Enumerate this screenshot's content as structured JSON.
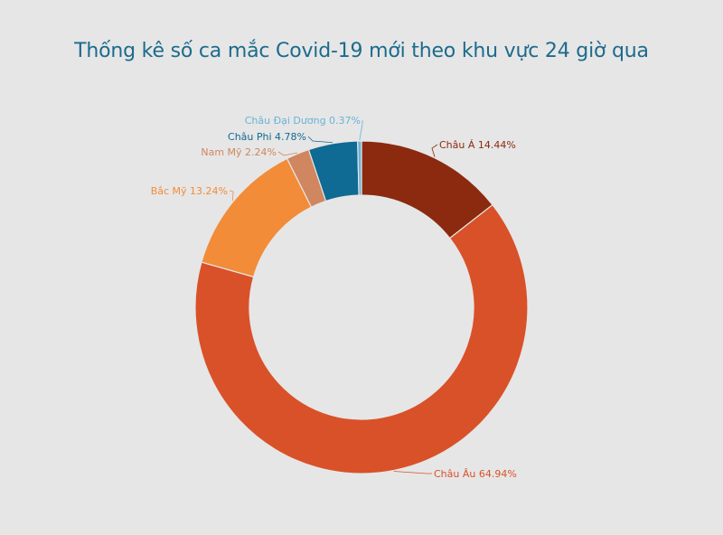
{
  "chart_data": {
    "type": "pie",
    "title": "Thống kê số ca mắc Covid-19 mới theo khu vực 24 giờ qua",
    "donut": true,
    "legend": "none",
    "series": [
      {
        "name": "Châu Á",
        "value": 14.44,
        "label": "Châu Á 14.44%",
        "color": "#8b2a0e"
      },
      {
        "name": "Châu Âu",
        "value": 64.94,
        "label": "Châu Âu 64.94%",
        "color": "#d95128"
      },
      {
        "name": "Bắc Mỹ",
        "value": 13.24,
        "label": "Bắc Mỹ 13.24%",
        "color": "#f28c38"
      },
      {
        "name": "Nam Mỹ",
        "value": 2.24,
        "label": "Nam Mỹ 2.24%",
        "color": "#d0865e"
      },
      {
        "name": "Châu Phi",
        "value": 4.78,
        "label": "Châu Phi  4.78%",
        "color": "#0f6a94"
      },
      {
        "name": "Châu Đại Dương",
        "value": 0.37,
        "label": "Châu Đại Dương 0.37%",
        "color": "#68b3d6"
      }
    ]
  }
}
